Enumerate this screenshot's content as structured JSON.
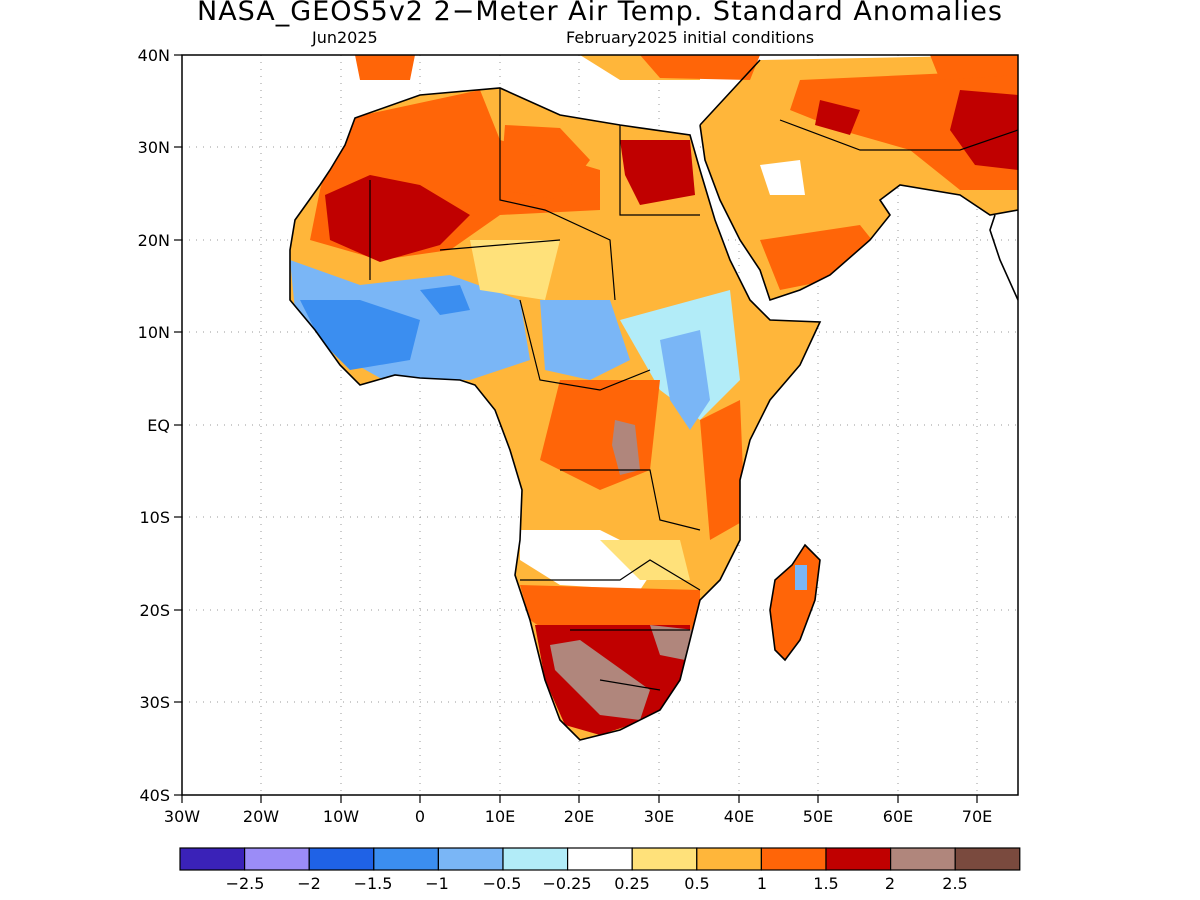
{
  "title": "NASA_GEOS5v2 2−Meter Air Temp. Standard Anomalies",
  "subtitle_left": "Jun2025",
  "subtitle_right": "February2025 initial conditions",
  "map": {
    "lon_range": [
      -30,
      75
    ],
    "lat_range": [
      -40,
      40
    ],
    "lon_ticks": [
      "30W",
      "20W",
      "10W",
      "0",
      "10E",
      "20E",
      "30E",
      "40E",
      "50E",
      "60E",
      "70E"
    ],
    "lat_ticks": [
      "40N",
      "30N",
      "20N",
      "10N",
      "EQ",
      "10S",
      "20S",
      "30S",
      "40S"
    ],
    "gridlines": "dotted"
  },
  "colorbar": {
    "colors": [
      "#3a22b8",
      "#9b8cf7",
      "#1f62e6",
      "#3b8ef0",
      "#7ab6f6",
      "#b2ecf8",
      "#ffffff",
      "#ffe17a",
      "#ffb63a",
      "#ff6508",
      "#c00000",
      "#b0867c",
      "#7a4a3e"
    ],
    "labels": [
      "−2.5",
      "−2",
      "−1.5",
      "−1",
      "−0.5",
      "−0.25",
      "0.25",
      "0.5",
      "1",
      "1.5",
      "2",
      "2.5"
    ]
  },
  "regions": [
    {
      "name": "north-africa-west",
      "level": "1.5"
    },
    {
      "name": "sahara-core",
      "level": "2"
    },
    {
      "name": "sahel-west",
      "level": "-1"
    },
    {
      "name": "east-africa",
      "level": "-0.5"
    },
    {
      "name": "arabia",
      "level": "1"
    },
    {
      "name": "southern-africa",
      "level": "2"
    },
    {
      "name": "south-africa-core",
      "level": "2.5"
    },
    {
      "name": "madagascar",
      "level": "1.5"
    }
  ]
}
